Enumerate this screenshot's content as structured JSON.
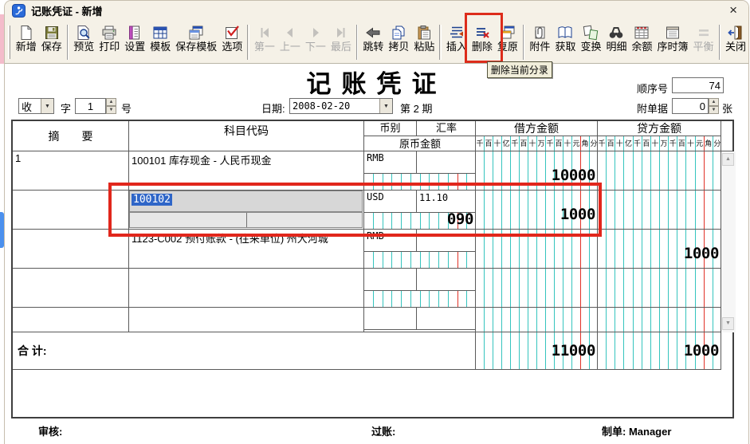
{
  "window": {
    "title": "记账凭证 - 新增",
    "close_glyph": "×"
  },
  "toolbar": {
    "tooltip": "删除当前分录",
    "groups": [
      {
        "items": [
          {
            "name": "new",
            "label": "新增",
            "icon": "new-doc",
            "enabled": true
          },
          {
            "name": "save",
            "label": "保存",
            "icon": "save-floppy",
            "enabled": true
          }
        ]
      },
      {
        "items": [
          {
            "name": "preview",
            "label": "预览",
            "icon": "preview",
            "enabled": true
          },
          {
            "name": "print",
            "label": "打印",
            "icon": "print",
            "enabled": true
          },
          {
            "name": "settings",
            "label": "设置",
            "icon": "settings",
            "enabled": true
          },
          {
            "name": "template",
            "label": "模板",
            "icon": "template",
            "enabled": true
          },
          {
            "name": "save-template",
            "label": "保存模板",
            "icon": "save-template",
            "enabled": true
          },
          {
            "name": "options",
            "label": "选项",
            "icon": "options",
            "enabled": true
          }
        ]
      },
      {
        "items": [
          {
            "name": "first",
            "label": "第一",
            "icon": "nav-first",
            "enabled": false
          },
          {
            "name": "prev",
            "label": "上一",
            "icon": "nav-prev",
            "enabled": false
          },
          {
            "name": "next",
            "label": "下一",
            "icon": "nav-next",
            "enabled": false
          },
          {
            "name": "last",
            "label": "最后",
            "icon": "nav-last",
            "enabled": false
          }
        ]
      },
      {
        "items": [
          {
            "name": "jump",
            "label": "跳转",
            "icon": "jump",
            "enabled": true
          },
          {
            "name": "copy",
            "label": "拷贝",
            "icon": "copy",
            "enabled": true
          },
          {
            "name": "paste",
            "label": "粘贴",
            "icon": "paste",
            "enabled": true
          }
        ]
      },
      {
        "items": [
          {
            "name": "insert",
            "label": "插入",
            "icon": "insert",
            "enabled": true
          },
          {
            "name": "delete",
            "label": "删除",
            "icon": "delete-rows",
            "enabled": true
          },
          {
            "name": "restore",
            "label": "复原",
            "icon": "restore",
            "enabled": true
          }
        ]
      },
      {
        "items": [
          {
            "name": "attachment",
            "label": "附件",
            "icon": "attachment",
            "enabled": true
          },
          {
            "name": "fetch",
            "label": "获取",
            "icon": "fetch",
            "enabled": true
          },
          {
            "name": "transform",
            "label": "变换",
            "icon": "transform",
            "enabled": true
          },
          {
            "name": "detail",
            "label": "明细",
            "icon": "binoculars",
            "enabled": true
          },
          {
            "name": "balance",
            "label": "余额",
            "icon": "balance-table",
            "enabled": true
          },
          {
            "name": "journal",
            "label": "序时簿",
            "icon": "journal",
            "enabled": true
          },
          {
            "name": "balance-even",
            "label": "平衡",
            "icon": "equals",
            "enabled": false
          }
        ]
      },
      {
        "items": [
          {
            "name": "close",
            "label": "关闭",
            "icon": "close-door",
            "enabled": true
          }
        ]
      }
    ]
  },
  "voucher": {
    "doc_title": "记账凭证",
    "seq_label": "顺序号",
    "seq_value": "74",
    "word_value": "收",
    "word_label": "字",
    "word_number": "1",
    "word_suffix": "号",
    "date_label": "日期:",
    "date_value": "2008-02-20",
    "period_text": "第 2 期",
    "attach_label": "附单据",
    "attach_value": "0",
    "attach_suffix": "张"
  },
  "grid": {
    "headers": {
      "summary": "摘　　要",
      "account": "科目代码",
      "currency": "币别",
      "rate": "汇率",
      "orig_amount": "原币金额",
      "debit": "借方金额",
      "credit": "贷方金额"
    },
    "digit_labels": [
      "千",
      "百",
      "十",
      "亿",
      "千",
      "百",
      "十",
      "万",
      "千",
      "百",
      "十",
      "元",
      "角",
      "分"
    ],
    "rows": [
      {
        "summary": "1",
        "account": "100101 库存现金 - 人民币现金",
        "currency": "RMB",
        "rate": "",
        "orig_amount": "",
        "debit": "10000",
        "credit": "",
        "editing": false
      },
      {
        "summary": "",
        "account": "",
        "editing": true,
        "editing_code": "100102",
        "currency": "USD",
        "rate": "11.10",
        "orig_amount": "090",
        "debit": "1000",
        "credit": ""
      },
      {
        "summary": "",
        "account": "1123-C002 预付账款 - (往来单位) 州大河城",
        "currency": "RMB",
        "rate": "",
        "orig_amount": "",
        "debit": "",
        "credit": "1000",
        "editing": false
      },
      {
        "summary": "",
        "account": "",
        "currency": "",
        "rate": "",
        "orig_amount": "",
        "debit": "",
        "credit": "",
        "editing": false
      },
      {
        "summary": "",
        "account": "",
        "currency": "",
        "rate": "",
        "orig_amount": "",
        "debit": "",
        "credit": "",
        "editing": false
      }
    ],
    "total": {
      "label": "合 计:",
      "debit": "11000",
      "credit": "1000"
    }
  },
  "footer": {
    "review": "审核:",
    "post": "过账:",
    "maker": "制单: Manager"
  },
  "colors": {
    "annotation_red": "#DD2C1B",
    "grid_teal": "#35C4BE",
    "grid_red": "#E03228",
    "selection_blue": "#2F66C8",
    "titlebar_bg": "#F5F1E7"
  }
}
